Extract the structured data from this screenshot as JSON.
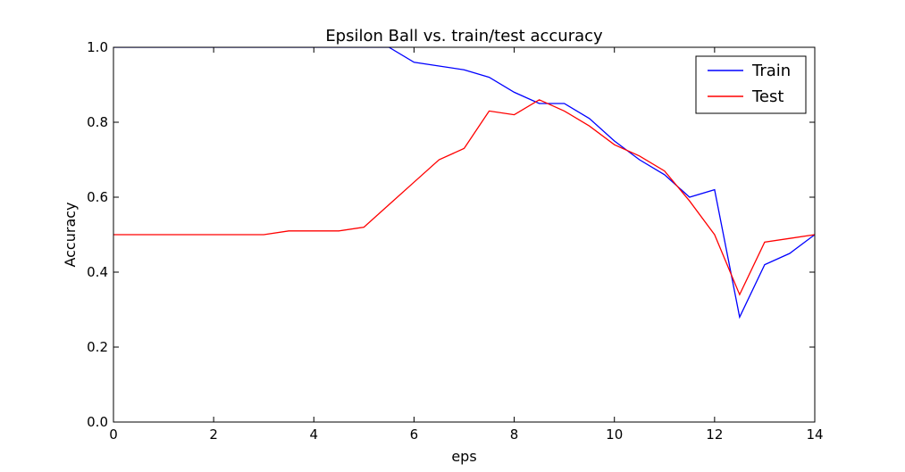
{
  "chart_data": {
    "type": "line",
    "title": "Epsilon Ball vs. train/test accuracy",
    "xlabel": "eps",
    "ylabel": "Accuracy",
    "xlim": [
      0,
      14
    ],
    "ylim": [
      0.0,
      1.0
    ],
    "xticks": [
      "0",
      "2",
      "4",
      "6",
      "8",
      "10",
      "12",
      "14"
    ],
    "yticks": [
      "0.0",
      "0.2",
      "0.4",
      "0.6",
      "0.8",
      "1.0"
    ],
    "grid": false,
    "legend_position": "top-right",
    "x": [
      0,
      0.5,
      1,
      1.5,
      2,
      2.5,
      3,
      3.5,
      4,
      4.5,
      5,
      5.5,
      6,
      6.5,
      7,
      7.5,
      8,
      8.5,
      9,
      9.5,
      10,
      10.5,
      11,
      11.5,
      12,
      12.5,
      13,
      13.5,
      14
    ],
    "series": [
      {
        "name": "Train",
        "color": "#0000ff",
        "values": [
          1.0,
          1.0,
          1.0,
          1.0,
          1.0,
          1.0,
          1.0,
          1.0,
          1.0,
          1.0,
          1.0,
          1.0,
          0.96,
          0.95,
          0.94,
          0.92,
          0.88,
          0.85,
          0.85,
          0.81,
          0.75,
          0.7,
          0.66,
          0.6,
          0.62,
          0.28,
          0.42,
          0.45,
          0.5
        ]
      },
      {
        "name": "Test",
        "color": "#ff0000",
        "values": [
          0.5,
          0.5,
          0.5,
          0.5,
          0.5,
          0.5,
          0.5,
          0.51,
          0.51,
          0.51,
          0.52,
          0.58,
          0.64,
          0.7,
          0.73,
          0.83,
          0.82,
          0.86,
          0.83,
          0.79,
          0.74,
          0.71,
          0.67,
          0.59,
          0.5,
          0.34,
          0.48,
          0.49,
          0.5
        ]
      }
    ]
  }
}
